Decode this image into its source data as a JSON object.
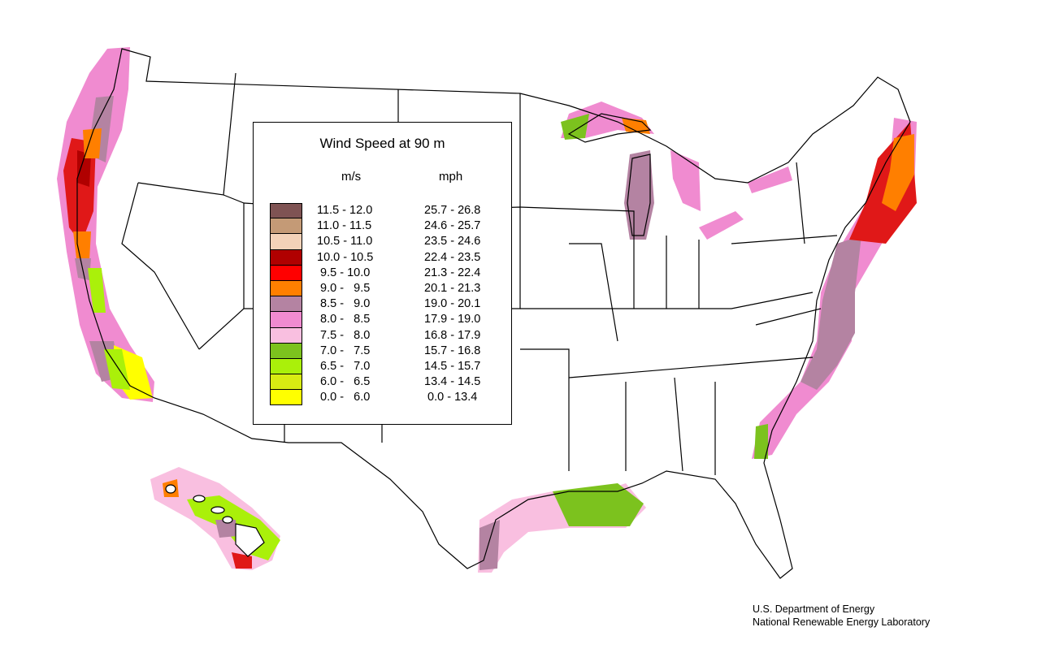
{
  "legend": {
    "title": "Wind Speed at 90 m",
    "unit_ms": "m/s",
    "unit_mph": "mph",
    "classes": [
      {
        "ms": "11.5 - 12.0",
        "mph": "25.7 - 26.8",
        "color": "#7f5353"
      },
      {
        "ms": "11.0 - 11.5",
        "mph": "24.6 - 25.7",
        "color": "#c49a76"
      },
      {
        "ms": "10.5 - 11.0",
        "mph": "23.5 - 24.6",
        "color": "#f3d2b8"
      },
      {
        "ms": "10.0 - 10.5",
        "mph": "22.4 - 23.5",
        "color": "#b00000"
      },
      {
        "ms": " 9.5 - 10.0",
        "mph": "21.3 - 22.4",
        "color": "#ff0000"
      },
      {
        "ms": " 9.0 -   9.5",
        "mph": "20.1 - 21.3",
        "color": "#ff7f00"
      },
      {
        "ms": " 8.5 -   9.0",
        "mph": "19.0 - 20.1",
        "color": "#b483a2"
      },
      {
        "ms": " 8.0 -   8.5",
        "mph": "17.9 - 19.0",
        "color": "#f08bd0"
      },
      {
        "ms": " 7.5 -   8.0",
        "mph": "16.8 - 17.9",
        "color": "#f9bfe0"
      },
      {
        "ms": " 7.0 -   7.5",
        "mph": "15.7 - 16.8",
        "color": "#7cc21e"
      },
      {
        "ms": " 6.5 -   7.0",
        "mph": "14.5 - 15.7",
        "color": "#aaf00a"
      },
      {
        "ms": " 6.0 -   6.5",
        "mph": "13.4 - 14.5",
        "color": "#d8ec12"
      },
      {
        "ms": " 0.0 -   6.0",
        "mph": " 0.0 - 13.4",
        "color": "#ffff00"
      }
    ]
  },
  "credits": {
    "line1": "U.S. Department of Energy",
    "line2": "National Renewable Energy Laboratory"
  }
}
